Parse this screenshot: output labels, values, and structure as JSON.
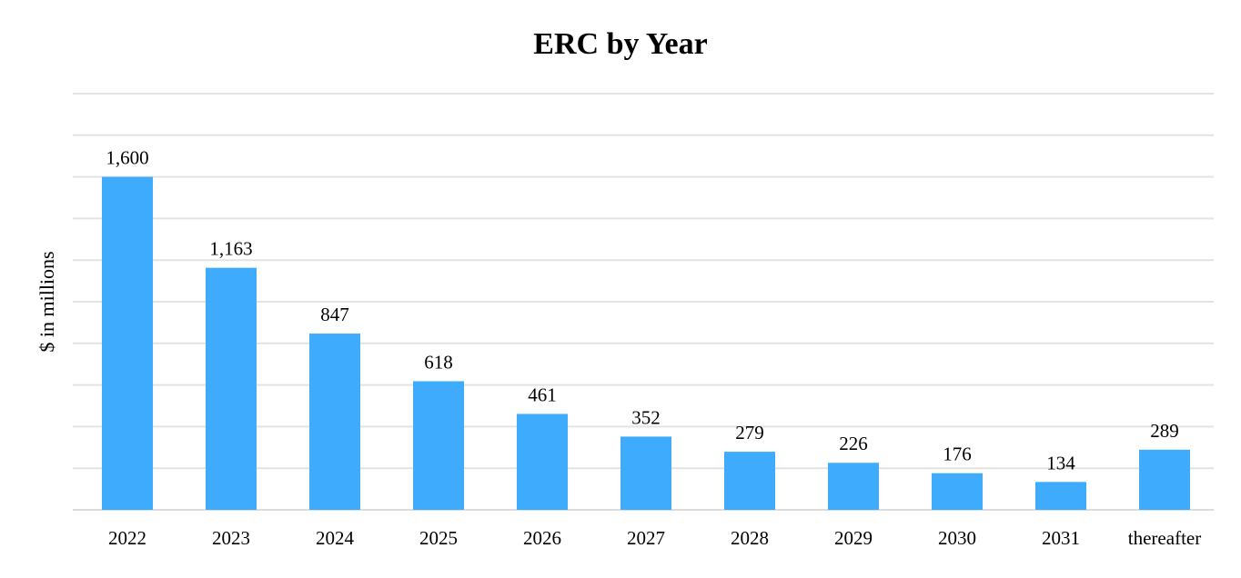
{
  "chart_data": {
    "type": "bar",
    "title": "ERC by Year",
    "xlabel": "",
    "ylabel": "$ in millions",
    "categories": [
      "2022",
      "2023",
      "2024",
      "2025",
      "2026",
      "2027",
      "2028",
      "2029",
      "2030",
      "2031",
      "thereafter"
    ],
    "values": [
      1600,
      1163,
      847,
      618,
      461,
      352,
      279,
      226,
      176,
      134,
      289
    ],
    "data_labels": [
      "1,600",
      "1,163",
      "847",
      "618",
      "461",
      "352",
      "279",
      "226",
      "176",
      "134",
      "289"
    ],
    "ylim": [
      0,
      2000
    ],
    "y_grid_step": 200,
    "grid": true,
    "y_tick_labels_shown": false,
    "legend": "none",
    "bar_color": "#3fabfc"
  }
}
